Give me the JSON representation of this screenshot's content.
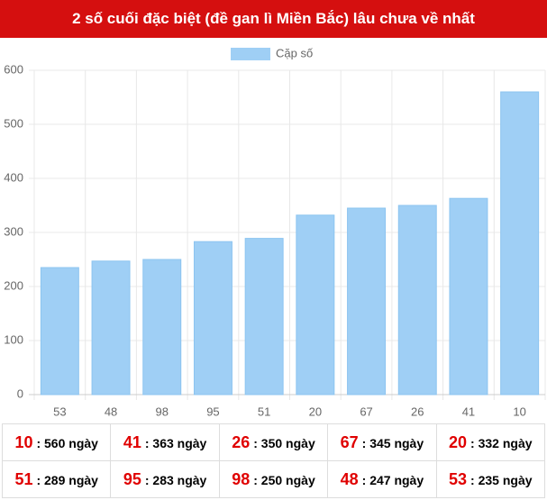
{
  "chart_data": {
    "type": "bar",
    "title": "2 số cuối đặc biệt (đề gan lì Miền Bắc) lâu chưa về nhất",
    "categories": [
      "53",
      "48",
      "98",
      "95",
      "51",
      "20",
      "67",
      "26",
      "41",
      "10"
    ],
    "series": [
      {
        "name": "Cặp số",
        "color": "#9fcff5",
        "values": [
          235,
          247,
          250,
          283,
          289,
          332,
          345,
          350,
          363,
          560
        ]
      }
    ],
    "ylim": [
      0,
      600
    ],
    "yticks": [
      0,
      100,
      200,
      300,
      400,
      500,
      600
    ],
    "grid": true,
    "legend": "top"
  },
  "table": {
    "rows": [
      [
        {
          "number": "10",
          "text": ": 560 ngày"
        },
        {
          "number": "41",
          "text": ": 363 ngày"
        },
        {
          "number": "26",
          "text": ": 350 ngày"
        },
        {
          "number": "67",
          "text": ": 345 ngày"
        },
        {
          "number": "20",
          "text": ": 332 ngày"
        }
      ],
      [
        {
          "number": "51",
          "text": ": 289 ngày"
        },
        {
          "number": "95",
          "text": ": 283 ngày"
        },
        {
          "number": "98",
          "text": ": 250 ngày"
        },
        {
          "number": "48",
          "text": ": 247 ngày"
        },
        {
          "number": "53",
          "text": ": 235 ngày"
        }
      ]
    ]
  }
}
